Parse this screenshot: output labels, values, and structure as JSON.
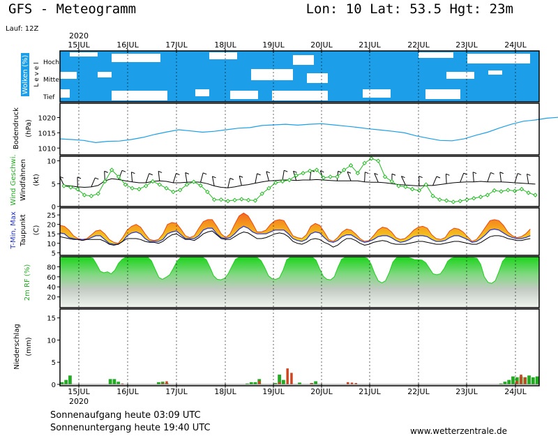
{
  "header": {
    "title": "GFS - Meteogramm",
    "location": "Lon: 10 Lat: 53.5 Hgt: 23m",
    "run": "Lauf: 12Z"
  },
  "time_axis": {
    "year": "2020",
    "days": [
      "15JUL",
      "16JUL",
      "17JUL",
      "18JUL",
      "19JUL",
      "20JUL",
      "21JUL",
      "22JUL",
      "23JUL",
      "24JUL"
    ]
  },
  "footer": {
    "sunrise": "Sonnenaufgang heute 03:09 UTC",
    "sunset": "Sonnenuntergang heute 19:40 UTC",
    "website": "www.wetterzentrale.de"
  },
  "colors": {
    "cloud_sky": "#1c9fe8",
    "pressure_line": "#1c9fe8",
    "wind_line": "#22bb22",
    "tmax": "#ee4411",
    "tmin": "#2233cc",
    "humidity_top": "#22cc22",
    "precip_green": "#22aa22",
    "precip_red": "#cc4422"
  },
  "chart_data": [
    {
      "type": "heatmap",
      "id": "clouds",
      "ylabel": "Wolken (%)",
      "ylabel2": "L e v e l",
      "levels": [
        "Hoch",
        "Mittel",
        "Tief"
      ]
    },
    {
      "type": "line",
      "id": "pressure",
      "ylabel": "Bodendruck",
      "ylabel2": "(hPa)",
      "ylim": [
        1008,
        1024
      ],
      "yticks": [
        1010,
        1015,
        1020
      ],
      "x_start": "2020-07-14T12:00Z",
      "x_step_hours": 6,
      "values": [
        1013,
        1012.8,
        1012.5,
        1011.8,
        1012.2,
        1012.3,
        1012.8,
        1013.5,
        1014.5,
        1015.3,
        1016,
        1015.6,
        1015.2,
        1015.5,
        1016,
        1016.5,
        1016.7,
        1017.4,
        1017.6,
        1017.8,
        1017.5,
        1017.8,
        1018,
        1017.6,
        1017.2,
        1016.8,
        1016.3,
        1015.9,
        1015.5,
        1015,
        1014,
        1013.2,
        1012.5,
        1012.4,
        1013,
        1014.2,
        1015.2,
        1016.6,
        1017.8,
        1018.8,
        1019.2,
        1019.8,
        1020.1,
        1020.7,
        1021,
        1020.5,
        1020.2,
        1020.5,
        1020.3,
        1019.6,
        1018.8,
        1018.3,
        1017.9,
        1017.5,
        1016.3,
        1015.3,
        1014.5,
        1013.6,
        1012.6,
        1012,
        1011.8,
        1012.3,
        1012.1,
        1012.5,
        1013.2
      ]
    },
    {
      "type": "line",
      "id": "wind",
      "ylabel": "Wind Geschwi.",
      "ylabel2": "Windfahnen",
      "ylabel3": "(kt)",
      "ylim": [
        0,
        11
      ],
      "yticks": [
        0,
        5,
        10
      ],
      "x_start": "2020-07-14T12:00Z",
      "x_step_hours": 6,
      "speed": [
        4.5,
        4.2,
        3.8,
        2.5,
        2.3,
        2.8,
        5.5,
        8,
        6.5,
        4.8,
        4,
        3.8,
        4.5,
        5.5,
        4.8,
        4,
        3.2,
        3.6,
        4.8,
        5.4,
        4.6,
        3.2,
        1.5,
        1.5,
        1.2,
        1.4,
        1.6,
        1.4,
        1.3,
        2.8,
        4,
        5.2,
        5.5,
        5.8,
        6.8,
        7.3,
        7.8,
        8,
        6.3,
        6.5,
        6.5,
        8,
        9,
        7.3,
        9.5,
        10.5,
        10,
        6.5,
        5.5,
        4.5,
        4.3,
        3.8,
        3.5,
        4.8,
        2.3,
        1.5,
        1.3,
        1,
        1.2,
        1.5,
        1.8,
        2.1,
        2.5,
        3.5,
        3.3,
        3.6,
        3.4,
        3.8,
        3,
        2.5
      ],
      "avg": [
        4.6,
        4.5,
        4.3,
        4.2,
        4.3,
        4.6,
        5.6,
        6.1,
        5.9,
        5.6,
        5.4,
        5.2,
        5.2,
        5.5,
        5.6,
        5.5,
        5.2,
        5.2,
        5.3,
        5.4,
        5.3,
        5,
        4.5,
        4.2,
        4.1,
        4.3,
        4.6,
        4.8,
        5.1,
        5.4,
        5.6,
        5.7,
        5.8,
        5.8,
        5.7,
        5.8,
        5.8,
        5.9,
        5.8,
        5.7,
        5.6,
        5.6,
        5.6,
        5.6,
        5.4,
        5.3,
        5.3,
        5.2,
        5,
        4.8,
        4.7,
        4.6,
        4.5,
        4.6,
        4.6,
        4.8,
        5,
        5.2,
        5.3,
        5.4,
        5.4,
        5.5,
        5.4,
        5.4,
        5.4,
        5.3,
        5.2,
        5.1,
        5,
        4.9
      ]
    },
    {
      "type": "area",
      "id": "temperature",
      "ylabel": "T-Min, Max",
      "ylabel2": "Taupunkt",
      "ylabel3": "(C)",
      "ylim": [
        4,
        28
      ],
      "yticks": [
        5,
        10,
        15,
        20,
        25
      ],
      "x_start": "2020-07-14T12:00Z",
      "x_step_hours": 3,
      "tmax": [
        19.5,
        19,
        17,
        14,
        12.5,
        12,
        12.5,
        14.5,
        16.5,
        17,
        15,
        12,
        10.5,
        10,
        13,
        17,
        19,
        20,
        18.5,
        15,
        12,
        11.5,
        12,
        15,
        20,
        21,
        20.5,
        17.5,
        14,
        13,
        14,
        18,
        21.5,
        22.5,
        22.5,
        19,
        15,
        13,
        15,
        20,
        24.5,
        26,
        24.5,
        20.5,
        16,
        16,
        17,
        20,
        22,
        22.5,
        22,
        18,
        14,
        13,
        12.5,
        14.5,
        19,
        20.5,
        19.5,
        16,
        12,
        11,
        13,
        16,
        17.5,
        17,
        15,
        12.5,
        11,
        11.5,
        14,
        17,
        18.5,
        18,
        16,
        13,
        12,
        12.5,
        14.5,
        17,
        18.5,
        19,
        18,
        14.5,
        12.5,
        12,
        13,
        16.5,
        18,
        17.5,
        16,
        13.5,
        11,
        12,
        15,
        18.5,
        22,
        22.5,
        22,
        19.5,
        16,
        14,
        13,
        13.5,
        15,
        17.5
      ],
      "tmin": [
        15.5,
        15,
        13,
        12.5,
        12,
        12,
        12,
        13,
        14,
        14,
        12,
        10,
        9.5,
        9.5,
        11,
        14,
        15.5,
        16,
        15,
        12.5,
        11,
        11,
        11,
        12,
        15,
        16,
        16.5,
        14.5,
        12.5,
        12.5,
        12.5,
        14,
        17,
        18,
        18,
        15,
        13,
        12.5,
        13,
        15,
        17.5,
        19,
        18,
        16,
        15,
        15,
        15,
        16,
        17,
        17,
        17,
        15,
        12.5,
        11.5,
        11,
        12,
        15,
        16,
        15.5,
        13,
        11,
        10.5,
        11.5,
        13.5,
        14.5,
        14.5,
        13,
        11.5,
        10.5,
        11,
        12,
        13.5,
        14,
        14,
        13,
        11.5,
        10.5,
        11,
        12,
        13.5,
        14,
        14,
        13.5,
        12,
        11,
        11,
        11.5,
        13,
        14,
        14,
        13,
        12,
        10.5,
        11,
        12.5,
        14.5,
        17,
        17.5,
        17,
        15.5,
        14,
        13,
        12.5,
        12.5,
        13,
        14
      ],
      "dewpoint": [
        13.5,
        13,
        12.5,
        12,
        12,
        11.5,
        12,
        12,
        12,
        12,
        11,
        9.5,
        9,
        9.5,
        11,
        12.5,
        12.5,
        12.5,
        12,
        11,
        10.5,
        10.5,
        10,
        11,
        13,
        14.5,
        15,
        13.5,
        12,
        12,
        11.5,
        13,
        15,
        16,
        16.5,
        14.5,
        12.5,
        12,
        12,
        13.5,
        15,
        16,
        15.5,
        14,
        12.5,
        12.5,
        13,
        14,
        15,
        15.5,
        15,
        13.5,
        11,
        10,
        9.5,
        10.5,
        12,
        12.5,
        12,
        10.5,
        9.5,
        8,
        9,
        11,
        12.5,
        12.5,
        11.5,
        10,
        9,
        9.5,
        10.5,
        11,
        11.5,
        11,
        10,
        9.5,
        9.5,
        9.5,
        10,
        10.5,
        11,
        11,
        10.5,
        10,
        9.5,
        9.5,
        10,
        10.5,
        11,
        11,
        10.5,
        10,
        9.5,
        9.5,
        10.5,
        12,
        13.5,
        14,
        14,
        13.5,
        12.5,
        12,
        11.5,
        11.5,
        12,
        12.5
      ]
    },
    {
      "type": "area",
      "id": "humidity",
      "ylabel": "2m RF (%)",
      "ylim": [
        0,
        100
      ],
      "yticks": [
        20,
        40,
        60,
        80
      ],
      "x_start": "2020-07-14T12:00Z",
      "x_step_hours": 3,
      "values": [
        97,
        99,
        99,
        99,
        99,
        99,
        99,
        99,
        99,
        97,
        85,
        71,
        68,
        70,
        66,
        73,
        87,
        95,
        99,
        99,
        99,
        99,
        99,
        99,
        99,
        92,
        75,
        59,
        55,
        59,
        64,
        77,
        91,
        99,
        99,
        99,
        99,
        99,
        99,
        99,
        94,
        79,
        62,
        55,
        54,
        57,
        66,
        81,
        95,
        99,
        99,
        99,
        99,
        99,
        98,
        92,
        78,
        62,
        56,
        55,
        58,
        73,
        94,
        99,
        99,
        99,
        99,
        99,
        99,
        99,
        93,
        76,
        61,
        55,
        54,
        60,
        79,
        95,
        99,
        99,
        99,
        99,
        99,
        99,
        97,
        86,
        67,
        52,
        48,
        52,
        68,
        89,
        98,
        99,
        99,
        99,
        97,
        94,
        94,
        93,
        88,
        77,
        66,
        64,
        66,
        76,
        91,
        97,
        99,
        99,
        99,
        99,
        98,
        98,
        97,
        85,
        60,
        49,
        47,
        52,
        70,
        91,
        99,
        99,
        99,
        99,
        99,
        99,
        99,
        99,
        99,
        99
      ]
    },
    {
      "type": "bar",
      "id": "precipitation",
      "ylabel": "Niederschlag",
      "ylabel2": "(mm)",
      "ylim": [
        0,
        17
      ],
      "yticks": [
        0,
        5,
        10,
        15
      ],
      "x_start": "2020-07-14T12:00Z",
      "x_step_hours": 3,
      "green": [
        0.5,
        1,
        2,
        0,
        0,
        0,
        0,
        0,
        0,
        0,
        0,
        0,
        1.2,
        1.2,
        0.6,
        0,
        0,
        0,
        0,
        0,
        0,
        0,
        0,
        0,
        0.5,
        0.6,
        0.3,
        0,
        0,
        0,
        0,
        0,
        0,
        0,
        0,
        0,
        0,
        0,
        0,
        0,
        0,
        0,
        0,
        0,
        0,
        0,
        0.2,
        0.5,
        0.5,
        1.2,
        0,
        0,
        0,
        0.3,
        2.2,
        1,
        0,
        0,
        0,
        0.4,
        0,
        0,
        0.3,
        0.7,
        0.1,
        0,
        0,
        0,
        0,
        0,
        0,
        0,
        0,
        0,
        0,
        0,
        0,
        0,
        0,
        0,
        0,
        0,
        0,
        0,
        0,
        0,
        0,
        0,
        0,
        0,
        0,
        0,
        0,
        0,
        0,
        0,
        0,
        0,
        0,
        0,
        0,
        0,
        0,
        0,
        0,
        0,
        0,
        0,
        0,
        0.2,
        0.6,
        1,
        1.8,
        1.6,
        1.8,
        1.6,
        2,
        1.6,
        1.8
      ],
      "red": [
        0,
        0,
        0,
        0,
        0,
        0,
        0,
        0,
        0,
        0,
        0,
        0,
        0,
        0,
        0,
        0.2,
        0,
        0,
        0,
        0,
        0,
        0,
        0,
        0,
        0,
        0.3,
        0.7,
        0,
        0,
        0,
        0,
        0,
        0,
        0,
        0,
        0,
        0,
        0,
        0,
        0,
        0,
        0,
        0,
        0,
        0,
        0,
        0,
        0,
        0,
        0.8,
        0,
        0,
        0,
        0,
        0.5,
        0,
        3.6,
        2.6,
        0,
        0,
        0,
        0,
        0.3,
        0,
        0,
        0,
        0,
        0,
        0,
        0,
        0,
        0.5,
        0.4,
        0.3,
        0,
        0,
        0,
        0,
        0,
        0,
        0,
        0,
        0,
        0,
        0,
        0,
        0,
        0,
        0,
        0,
        0,
        0,
        0,
        0,
        0,
        0,
        0,
        0,
        0,
        0,
        0,
        0,
        0,
        0,
        0,
        0,
        0,
        0,
        0,
        0,
        0,
        0,
        0,
        0.8,
        2.2,
        1.6,
        0,
        0,
        0,
        0
      ]
    }
  ]
}
